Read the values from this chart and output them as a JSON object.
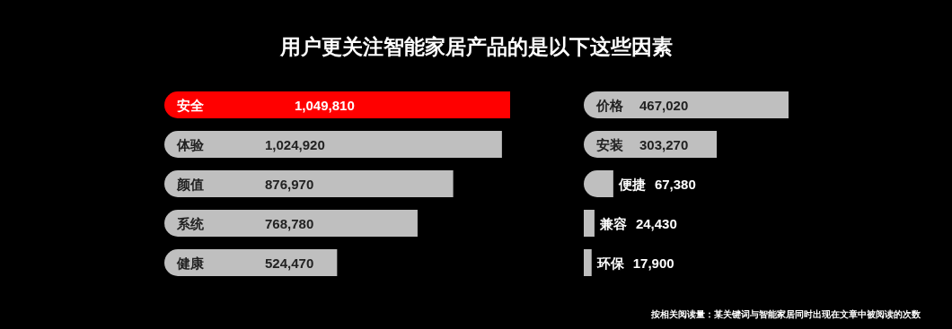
{
  "chart_data": [
    {
      "type": "bar",
      "orientation": "horizontal",
      "title": "用户更关注智能家居产品的是以下这些因素",
      "categories": [
        "安全",
        "体验",
        "颜值",
        "系统",
        "健康"
      ],
      "values": [
        1049810,
        1024920,
        876970,
        768780,
        524470
      ],
      "colors": [
        "#ff0000",
        "#bfbfbf",
        "#bfbfbf",
        "#bfbfbf",
        "#bfbfbf"
      ],
      "value_labels": [
        "1,049,810",
        "1,024,920",
        "876,970",
        "768,780",
        "524,470"
      ]
    },
    {
      "type": "bar",
      "orientation": "horizontal",
      "categories": [
        "价格",
        "安装",
        "便捷",
        "兼容",
        "环保"
      ],
      "values": [
        467020,
        303270,
        67380,
        24430,
        17900
      ],
      "colors": [
        "#bfbfbf",
        "#bfbfbf",
        "#bfbfbf",
        "#bfbfbf",
        "#bfbfbf"
      ],
      "value_labels": [
        "467,020",
        "303,270",
        "67,380",
        "24,430",
        "17,900"
      ],
      "annotations": [
        "按相关阅读量：某关键词与智能家居同时出现在文章中被阅读的次数"
      ]
    }
  ]
}
